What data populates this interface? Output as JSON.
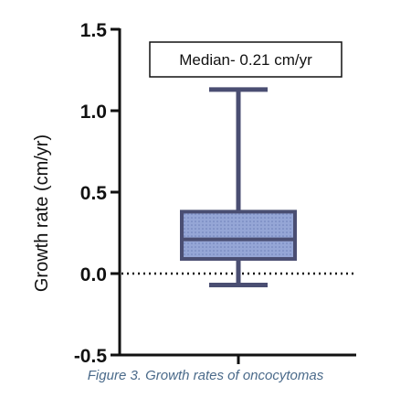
{
  "chart_data": {
    "type": "box",
    "ylabel": "Growth rate (cm/yr)",
    "ylim": [
      -0.5,
      1.5
    ],
    "yticks": [
      -0.5,
      0.0,
      0.5,
      1.0,
      1.5
    ],
    "ytick_labels": [
      "-0.5",
      "0.0",
      "0.5",
      "1.0",
      "1.5"
    ],
    "box": {
      "min": -0.07,
      "q1": 0.09,
      "median": 0.21,
      "q3": 0.38,
      "max": 1.13
    },
    "reference_line": {
      "y": 0.0,
      "style": "dotted"
    },
    "annotation": "Median- 0.21 cm/yr",
    "colors": {
      "box_fill": "#95a6d6",
      "box_stroke": "#4a4e72",
      "axis": "#111111"
    }
  },
  "caption": "Figure 3. Growth rates of oncocytomas"
}
